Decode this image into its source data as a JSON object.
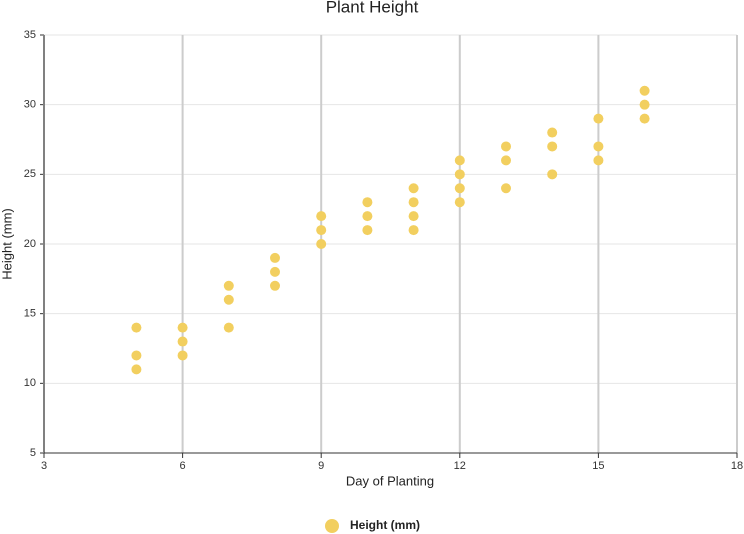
{
  "chart_data": {
    "type": "scatter",
    "title": "Plant Height",
    "x_label": "Day of Planting",
    "y_label": "Height (mm)",
    "xlim": [
      3,
      18
    ],
    "xticks": [
      3,
      6,
      9,
      12,
      15,
      18
    ],
    "ylim": [
      5,
      35
    ],
    "yticks": [
      5,
      10,
      15,
      20,
      25,
      30,
      35
    ],
    "grid": true,
    "legend": "bottom",
    "series": [
      {
        "name": "Height (mm)",
        "color": "#f2cf5f",
        "x": [
          5,
          5,
          5,
          6,
          6,
          6,
          7,
          7,
          7,
          8,
          8,
          8,
          9,
          9,
          9,
          10,
          10,
          10,
          11,
          11,
          11,
          11,
          12,
          12,
          12,
          12,
          13,
          13,
          13,
          14,
          14,
          14,
          15,
          15,
          15,
          16,
          16,
          16
        ],
        "values": [
          14,
          12,
          11,
          14,
          13,
          12,
          17,
          16,
          14,
          19,
          18,
          17,
          22,
          21,
          20,
          23,
          22,
          21,
          24,
          23,
          22,
          21,
          26,
          25,
          24,
          23,
          27,
          26,
          24,
          28,
          27,
          25,
          29,
          27,
          26,
          31,
          30,
          29
        ]
      }
    ]
  }
}
